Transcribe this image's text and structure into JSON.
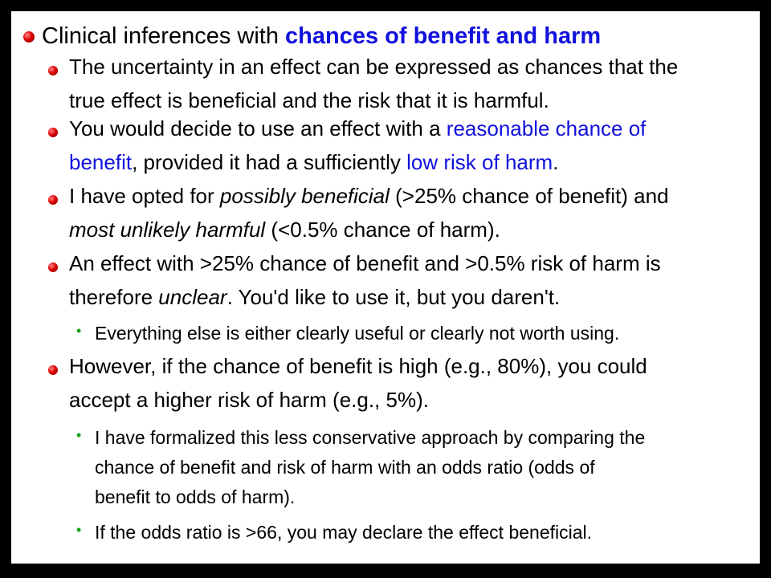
{
  "heading": {
    "text": "Clinical inferences with ",
    "highlight": "chances of benefit and harm"
  },
  "items": [
    {
      "l1": "The uncertainty in an effect can be expressed as chances that the",
      "l2": "true effect is beneficial and the risk that it is harmful."
    },
    {
      "l1a": "You would decide to use an effect with a ",
      "l1b": "reasonable chance of",
      "l2a": "benefit",
      "l2b": ", provided it had a sufficiently ",
      "l2c": "low risk of harm",
      "l2d": "."
    },
    {
      "l1a": "I have opted for ",
      "l1b": "possibly beneficial",
      "l1c": " (>25% chance of benefit) and",
      "l2a": "most unlikely harmful",
      "l2b": " (<0.5% chance of harm)."
    },
    {
      "l1": "An effect with >25% chance of benefit and >0.5% risk of harm is",
      "l2a": "therefore ",
      "l2b": "unclear",
      "l2c": ".  You'd like to use it, but you daren't.",
      "sub": "Everything else is either clearly useful or clearly not worth using."
    },
    {
      "l1": "However, if the chance of benefit is high (e.g., 80%), you could",
      "l2": "accept a higher risk of harm (e.g., 5%).",
      "sub1": [
        "I have formalized this less conservative approach by comparing the",
        "chance of benefit and risk of harm with an odds ratio (odds of",
        "benefit to odds of harm)."
      ],
      "sub2": "If the odds ratio is >66, you may declare the effect beneficial."
    }
  ],
  "sub_bullet": "•"
}
